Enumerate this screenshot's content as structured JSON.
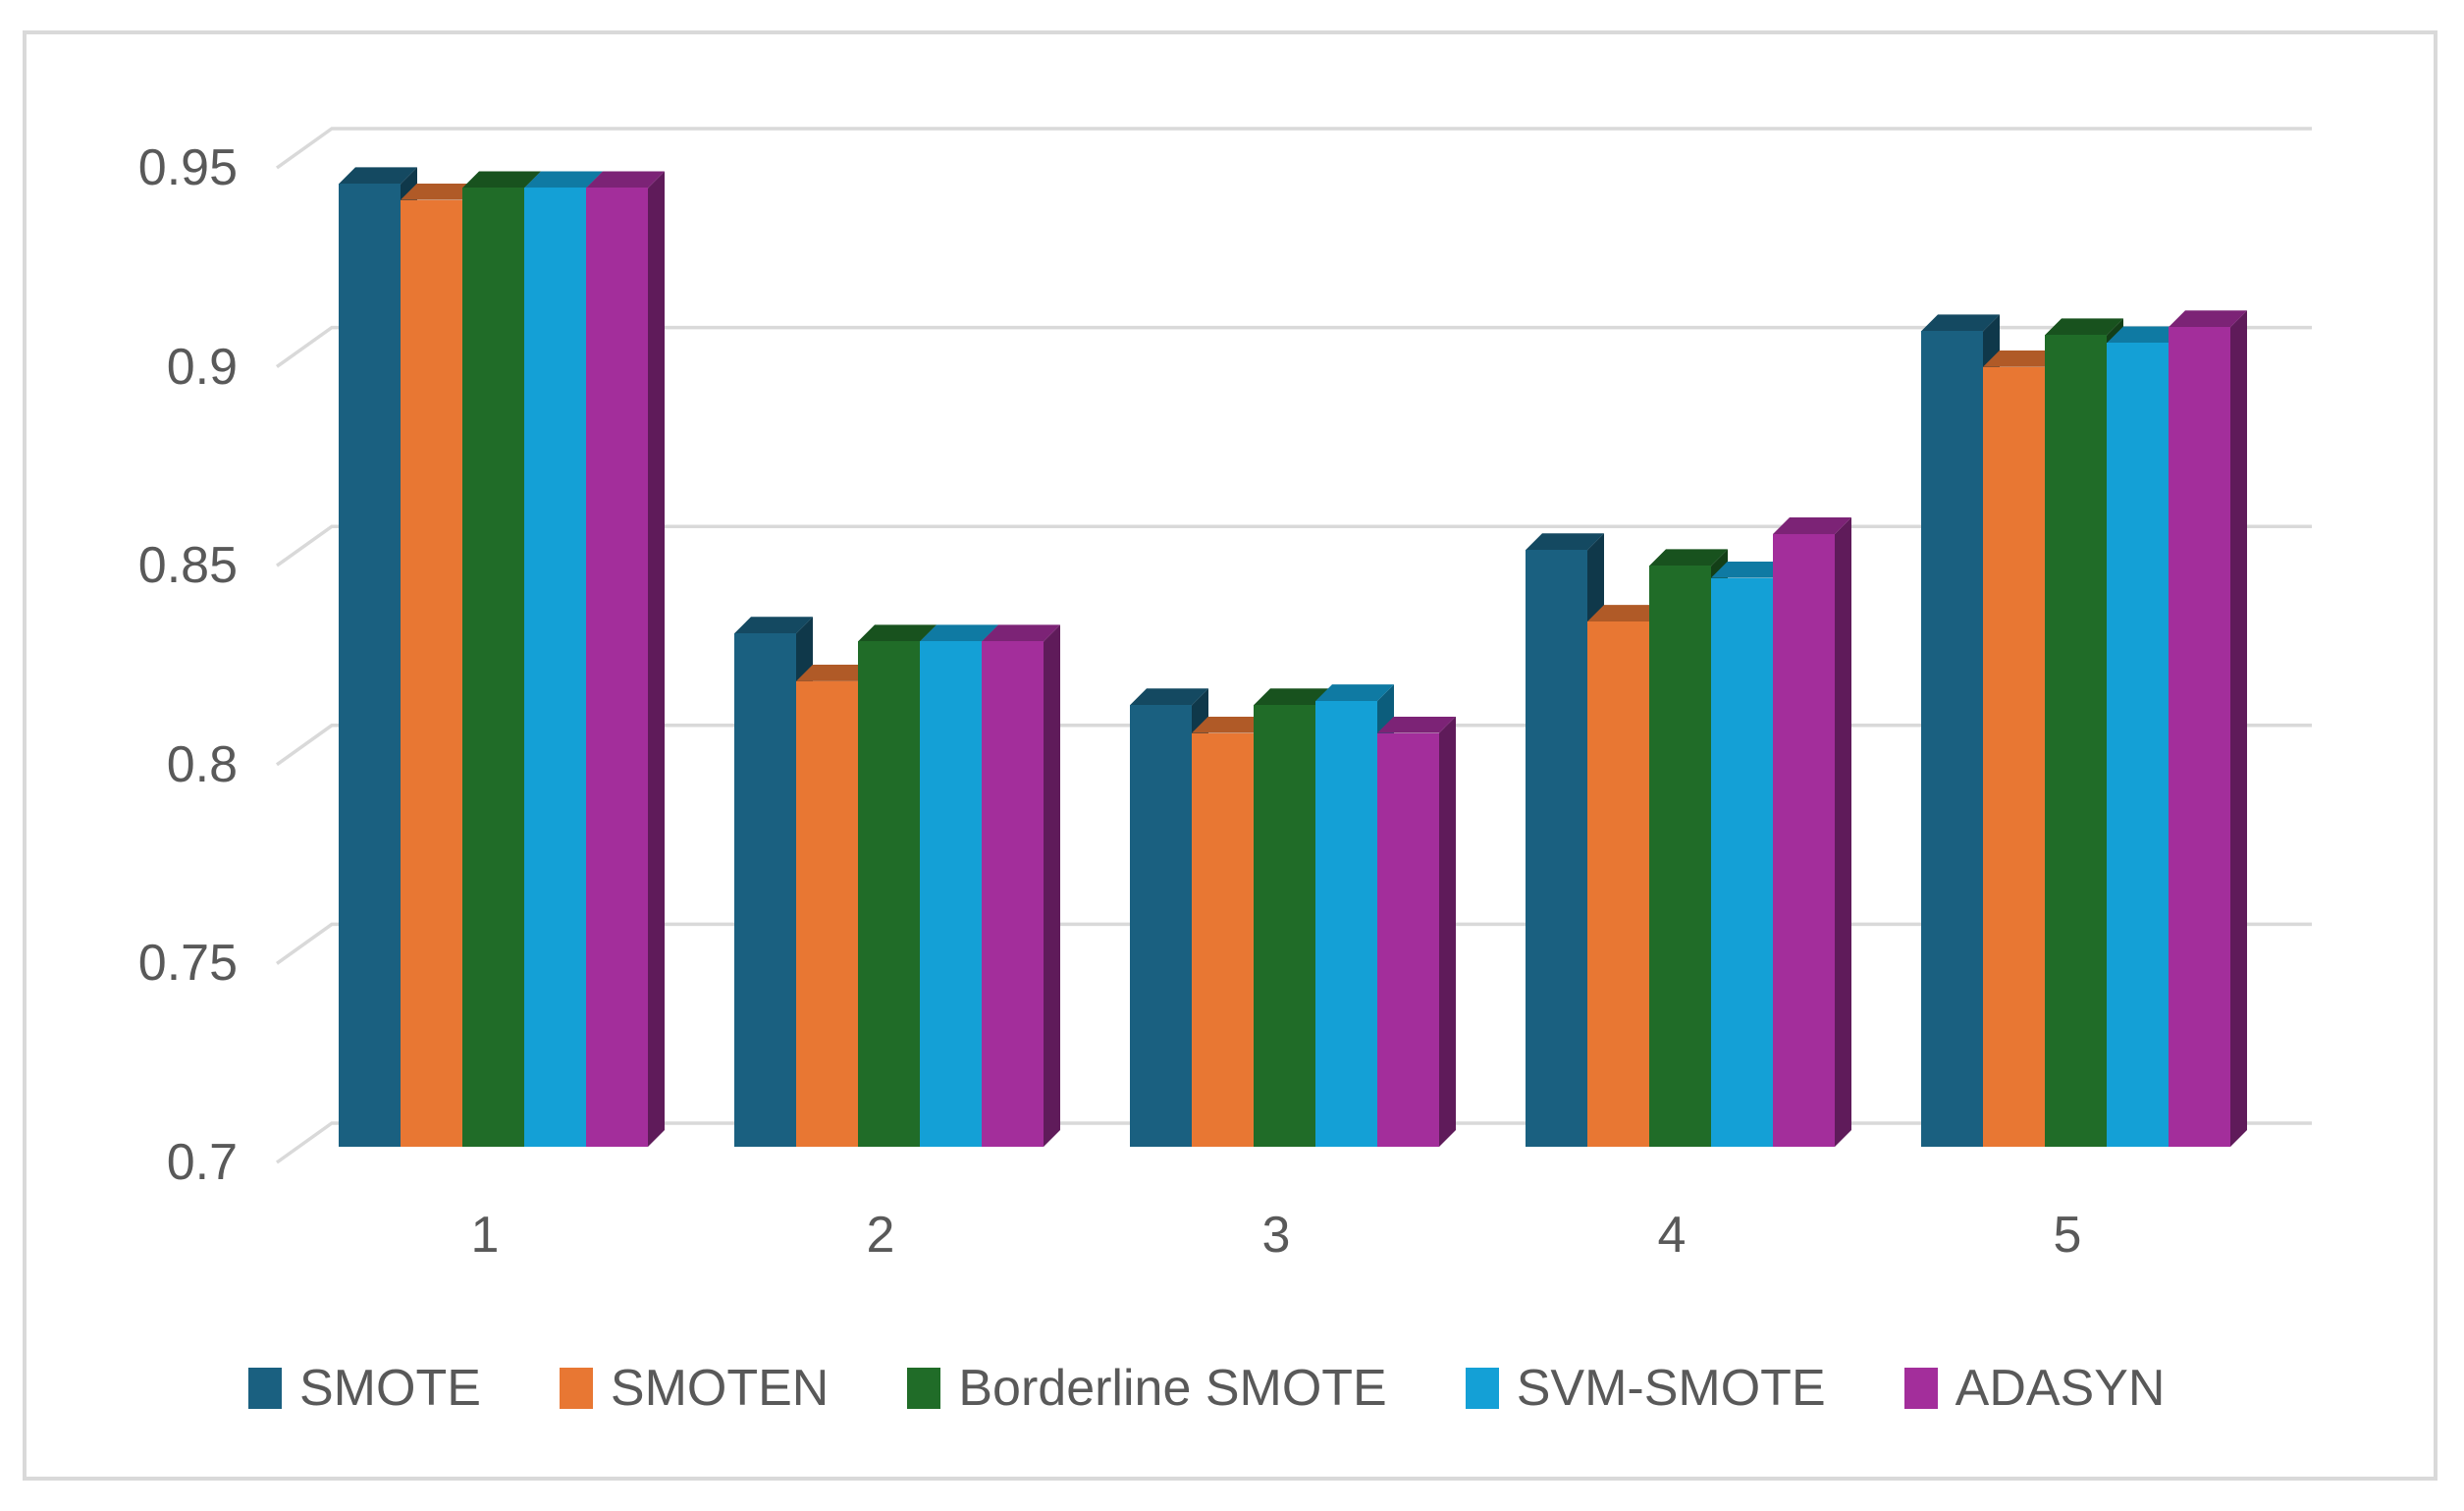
{
  "chart_data": {
    "type": "bar",
    "variant": "3d-clustered-column",
    "title": "",
    "xlabel": "",
    "ylabel": "",
    "categories": [
      "1",
      "2",
      "3",
      "4",
      "5"
    ],
    "series": [
      {
        "name": "SMOTE",
        "color": "#1A6080",
        "values": [
          0.942,
          0.829,
          0.811,
          0.85,
          0.905
        ]
      },
      {
        "name": "SMOTEN",
        "color": "#E87733",
        "values": [
          0.938,
          0.817,
          0.804,
          0.832,
          0.896
        ]
      },
      {
        "name": "Borderline SMOTE",
        "color": "#206C28",
        "values": [
          0.941,
          0.827,
          0.811,
          0.846,
          0.904
        ]
      },
      {
        "name": "SVM-SMOTE",
        "color": "#14A0D6",
        "values": [
          0.941,
          0.827,
          0.812,
          0.843,
          0.902
        ]
      },
      {
        "name": "ADASYN",
        "color": "#A32E9B",
        "values": [
          0.941,
          0.827,
          0.804,
          0.854,
          0.906
        ]
      }
    ],
    "y_axis": {
      "min": 0.7,
      "max": 0.95,
      "step": 0.05,
      "tick_labels": [
        "0.95",
        "0.9",
        "0.85",
        "0.8",
        "0.75",
        "0.7"
      ]
    },
    "legend_position": "bottom",
    "grid": true
  },
  "style_colors": {
    "axis_text": "#595959",
    "gridline": "#D9D9D9",
    "chart_border": "#D9D9D9",
    "background": "#FFFFFF"
  }
}
